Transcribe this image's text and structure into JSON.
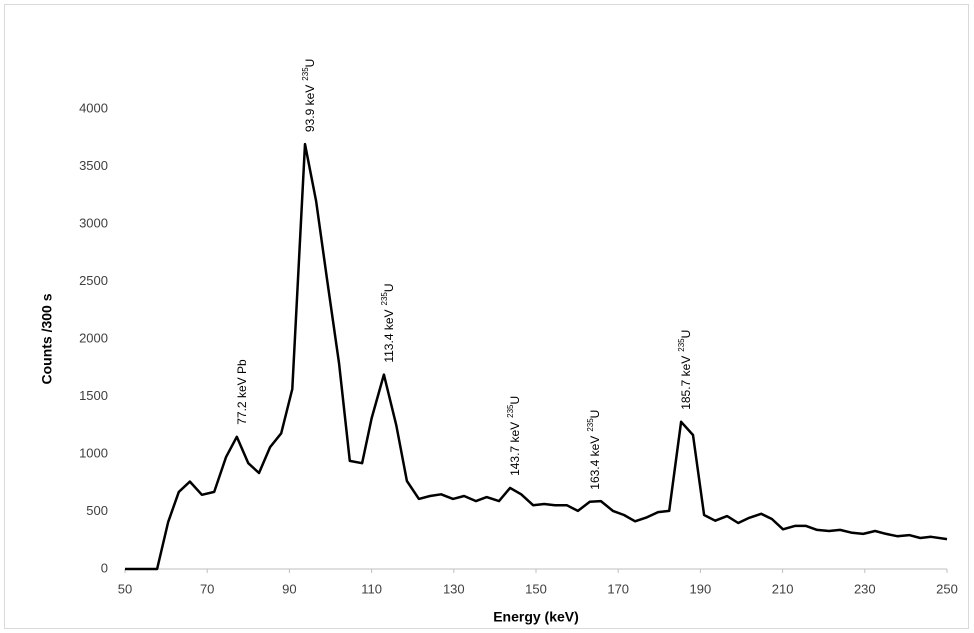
{
  "chart_data": {
    "type": "line",
    "x_label": "Energy (keV)",
    "y_label": "Counts /300 s",
    "xlim": [
      50,
      250
    ],
    "xticks": [
      50,
      70,
      90,
      110,
      130,
      150,
      170,
      190,
      210,
      230,
      250
    ],
    "ylim": [
      0,
      4000
    ],
    "yticks": [
      0,
      500,
      1000,
      1500,
      2000,
      2500,
      3000,
      3500,
      4000
    ],
    "grid": false,
    "series": [
      {
        "color": "#000000",
        "x": [
          50,
          57.8,
          60.5,
          63.1,
          65.8,
          68.7,
          71.7,
          74.6,
          77.2,
          80,
          82.6,
          85.3,
          88,
          90.7,
          93.8,
          96.5,
          99.2,
          102.1,
          104.7,
          107.7,
          110,
          113,
          116,
          118.6,
          121.5,
          124.2,
          126.9,
          129.8,
          132.5,
          135.4,
          138,
          141,
          143.7,
          146.4,
          149.3,
          152,
          154.6,
          157.5,
          160.2,
          163.1,
          165.8,
          168.7,
          171.4,
          174.1,
          177,
          179.7,
          182.4,
          185.3,
          188.2,
          190.9,
          193.6,
          196.5,
          199.2,
          201.9,
          204.8,
          207.4,
          210.1,
          213,
          215.7,
          218.4,
          221.3,
          224,
          226.9,
          229.6,
          232.5,
          235.2,
          237.9,
          240.8,
          243.5,
          246.1,
          250
        ],
        "values": [
          0,
          0,
          410,
          670,
          760,
          645,
          670,
          975,
          1150,
          920,
          835,
          1060,
          1180,
          1565,
          3695,
          3200,
          2510,
          1785,
          940,
          920,
          1310,
          1690,
          1250,
          765,
          610,
          635,
          650,
          610,
          635,
          590,
          625,
          590,
          705,
          650,
          555,
          565,
          555,
          555,
          505,
          585,
          590,
          505,
          470,
          415,
          450,
          495,
          505,
          1280,
          1165,
          470,
          420,
          460,
          400,
          445,
          480,
          435,
          345,
          375,
          375,
          340,
          330,
          340,
          315,
          305,
          330,
          305,
          285,
          295,
          270,
          280,
          260
        ]
      }
    ],
    "annotations": [
      {
        "x": 77.2,
        "text": "77.2 keV Pb"
      },
      {
        "x": 93.9,
        "text": "93.9 keV",
        "sup": "235",
        "tail": "U"
      },
      {
        "x": 113.4,
        "text": "113.4 keV",
        "sup": "235",
        "tail": "U"
      },
      {
        "x": 143.7,
        "text": "143.7 keV",
        "sup": "235",
        "tail": "U"
      },
      {
        "x": 163.4,
        "text": "163.4 keV",
        "sup": "235",
        "tail": "U"
      },
      {
        "x": 185.7,
        "text": "185.7 keV",
        "sup": "235",
        "tail": "U"
      }
    ]
  }
}
